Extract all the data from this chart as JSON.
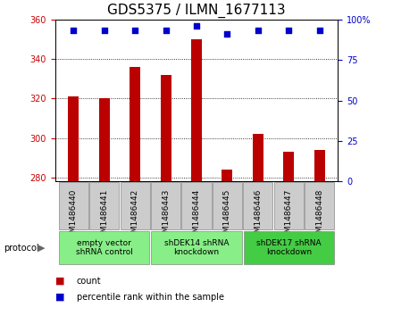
{
  "title": "GDS5375 / ILMN_1677113",
  "samples": [
    "GSM1486440",
    "GSM1486441",
    "GSM1486442",
    "GSM1486443",
    "GSM1486444",
    "GSM1486445",
    "GSM1486446",
    "GSM1486447",
    "GSM1486448"
  ],
  "counts": [
    321,
    320,
    336,
    332,
    350,
    284,
    302,
    293,
    294
  ],
  "percentile_ranks": [
    93,
    93,
    93,
    93,
    96,
    91,
    93,
    93,
    93
  ],
  "ylim_left": [
    278,
    360
  ],
  "ylim_right": [
    0,
    100
  ],
  "yticks_left": [
    280,
    300,
    320,
    340,
    360
  ],
  "yticks_right": [
    0,
    25,
    50,
    75,
    100
  ],
  "bar_color": "#bb0000",
  "dot_color": "#0000cc",
  "bar_bottom": 278,
  "groups": [
    {
      "label": "empty vector\nshRNA control",
      "start": 0,
      "end": 3,
      "color": "#88ee88"
    },
    {
      "label": "shDEK14 shRNA\nknockdown",
      "start": 3,
      "end": 6,
      "color": "#88ee88"
    },
    {
      "label": "shDEK17 shRNA\nknockdown",
      "start": 6,
      "end": 9,
      "color": "#44cc44"
    }
  ],
  "legend_count_label": "count",
  "legend_pct_label": "percentile rank within the sample",
  "protocol_label": "protocol",
  "axis_label_color_left": "#cc0000",
  "axis_label_color_right": "#0000cc",
  "tick_bg_color": "#cccccc",
  "title_fontsize": 11,
  "tick_fontsize": 7,
  "label_fontsize": 7
}
